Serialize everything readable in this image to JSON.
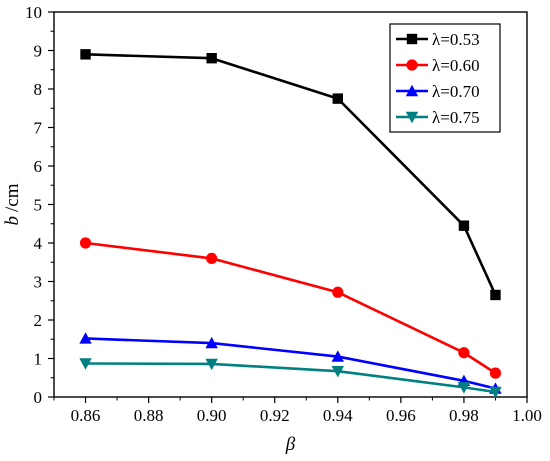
{
  "chart_data": {
    "type": "line",
    "x": [
      0.86,
      0.9,
      0.94,
      0.98,
      0.99
    ],
    "xlabel": "β",
    "ylabel_symbol": "b",
    "ylabel_unit": "/cm",
    "xlim": [
      0.85,
      1.0
    ],
    "ylim": [
      0,
      10
    ],
    "xticks": [
      "0.86",
      "0.88",
      "0.90",
      "0.92",
      "0.94",
      "0.96",
      "0.98",
      "1.00"
    ],
    "yticks": [
      "0",
      "1",
      "2",
      "3",
      "4",
      "5",
      "6",
      "7",
      "8",
      "9",
      "10"
    ],
    "grid": false,
    "legend_position": "top-right",
    "series": [
      {
        "name": "λ=0.53",
        "color": "#000000",
        "marker": "square",
        "values": [
          8.9,
          8.8,
          7.75,
          4.45,
          2.65
        ]
      },
      {
        "name": "λ=0.60",
        "color": "#ff0000",
        "marker": "circle",
        "values": [
          4.0,
          3.6,
          2.72,
          1.15,
          0.62
        ]
      },
      {
        "name": "λ=0.70",
        "color": "#0000ff",
        "marker": "triangle-up",
        "values": [
          1.52,
          1.4,
          1.05,
          0.42,
          0.22
        ]
      },
      {
        "name": "λ=0.75",
        "color": "#008080",
        "marker": "triangle-down",
        "values": [
          0.87,
          0.86,
          0.67,
          0.25,
          0.13
        ]
      }
    ]
  }
}
